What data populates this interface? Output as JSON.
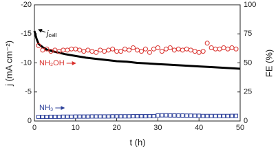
{
  "chart_data": {
    "type": "line",
    "xlabel": "t (h)",
    "ylabel": "j (mA cm⁻²)",
    "y2label": "FE (%)",
    "xlim": [
      0,
      50
    ],
    "xticks": [
      0,
      10,
      20,
      30,
      40,
      50
    ],
    "ylim": [
      0,
      -20
    ],
    "yticks": [
      0,
      -5,
      -10,
      -15,
      -20
    ],
    "y2lim": [
      0,
      100
    ],
    "y2ticks": [
      0,
      25,
      50,
      75,
      100
    ],
    "grid": false,
    "series": [
      {
        "mode": "line",
        "color": "#000000",
        "axis": "y",
        "x": [
          0,
          0.5,
          1,
          2,
          3,
          4,
          5,
          7.5,
          10,
          12.5,
          15,
          17.5,
          20,
          22.5,
          25,
          27.5,
          30,
          32.5,
          35,
          37.5,
          40,
          42.5,
          45,
          47.5,
          50
        ],
        "values": [
          -15.5,
          -14.2,
          -13.3,
          -12.7,
          -12.3,
          -12.1,
          -11.9,
          -11.5,
          -11.2,
          -10.9,
          -10.7,
          -10.5,
          -10.3,
          -10.2,
          -10.0,
          -9.9,
          -9.8,
          -9.7,
          -9.6,
          -9.5,
          -9.4,
          -9.3,
          -9.2,
          -9.1,
          -9.0
        ]
      },
      {
        "mode": "markers",
        "marker": "circle",
        "color": "#d9302c",
        "axis": "y2",
        "x": [
          1,
          2,
          3,
          4,
          5,
          6,
          7,
          8,
          9,
          10,
          11,
          12,
          13,
          14,
          15,
          16,
          17,
          18,
          19,
          20,
          21,
          22,
          23,
          24,
          25,
          26,
          27,
          28,
          29,
          30,
          31,
          32,
          33,
          34,
          35,
          36,
          37,
          38,
          39,
          40,
          41,
          42,
          43,
          44,
          45,
          46,
          47,
          48,
          49
        ],
        "values": [
          65,
          61,
          62,
          60,
          61,
          60,
          61,
          61,
          62,
          62,
          61,
          60,
          61,
          60,
          59,
          61,
          60,
          61,
          62,
          60,
          60,
          62,
          61,
          63,
          61,
          60,
          62,
          59,
          62,
          63,
          60,
          62,
          63,
          61,
          62,
          61,
          62,
          61,
          60,
          59,
          60,
          67,
          63,
          62,
          62,
          63,
          62,
          63,
          62
        ]
      },
      {
        "mode": "markers",
        "marker": "square",
        "color": "#2b3f99",
        "axis": "y2",
        "x": [
          1,
          2,
          3,
          4,
          5,
          6,
          7,
          8,
          9,
          10,
          11,
          12,
          13,
          14,
          15,
          16,
          17,
          18,
          19,
          20,
          21,
          22,
          23,
          24,
          25,
          26,
          27,
          28,
          29,
          30,
          31,
          32,
          33,
          34,
          35,
          36,
          37,
          38,
          39,
          40,
          41,
          42,
          43,
          44,
          45,
          46,
          47,
          48,
          49
        ],
        "values": [
          3.5,
          3.5,
          3.5,
          3.6,
          3.6,
          3.6,
          3.7,
          3.7,
          3.7,
          3.8,
          3.8,
          3.8,
          3.8,
          3.9,
          3.9,
          3.9,
          3.9,
          3.9,
          4.0,
          4.0,
          4.0,
          4.0,
          4.0,
          4.1,
          4.1,
          4.1,
          4.1,
          4.2,
          4.2,
          4.8,
          4.9,
          4.9,
          4.8,
          4.8,
          4.7,
          4.7,
          4.6,
          4.6,
          4.5,
          4.5,
          4.3,
          4.3,
          4.3,
          4.3,
          4.3,
          4.3,
          4.3,
          4.4,
          4.4
        ]
      }
    ],
    "annotations": [
      {
        "text": "j",
        "sub": "cell"
      },
      {
        "text": "NH₂OH"
      },
      {
        "text": "NH₃"
      }
    ]
  }
}
